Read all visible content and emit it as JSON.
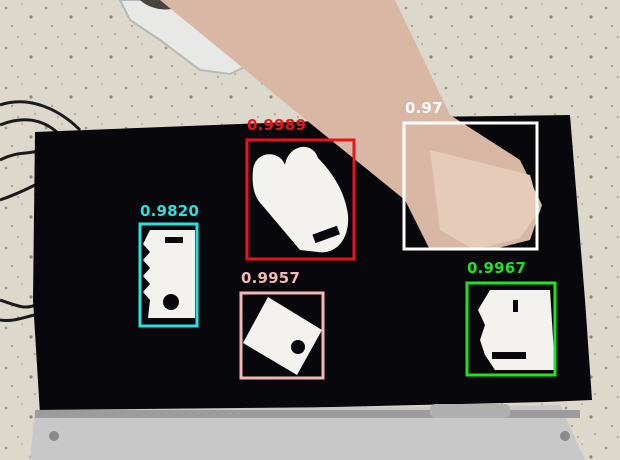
{
  "detections": [
    {
      "id": "red",
      "score": "0.9989",
      "color": "#e8141c"
    },
    {
      "id": "cyan",
      "score": "0.9820",
      "color": "#2ae0e0"
    },
    {
      "id": "pink",
      "score": "0.9957",
      "color": "#f2b8b8"
    },
    {
      "id": "white",
      "score": "0.97",
      "color": "#ffffff"
    },
    {
      "id": "green",
      "score": "0.9967",
      "color": "#22e022"
    }
  ],
  "colors": {
    "floor": "#ddd8cc",
    "black_cloth": "#08080c",
    "metal_plate": "#c8c8c8",
    "skin": "#d8b8a4",
    "shoe": "#e8e8e6",
    "part": "#f4f2ee"
  }
}
